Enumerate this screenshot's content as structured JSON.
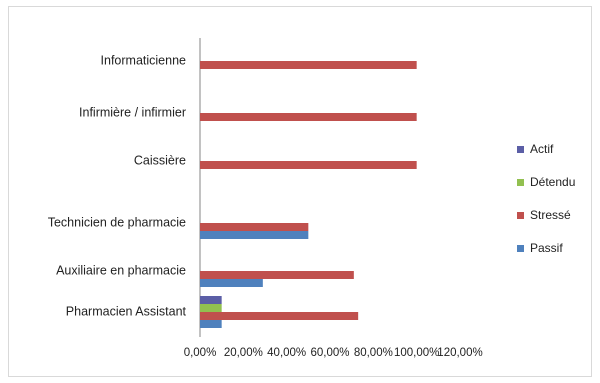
{
  "chart_data": {
    "type": "bar",
    "orientation": "horizontal",
    "categories": [
      "Informaticienne",
      "Infirmière / infirmier",
      "Caissière",
      "Technicien de pharmacie",
      "Auxiliaire en pharmacie",
      "Pharmacien Assistant"
    ],
    "series": [
      {
        "name": "Actif",
        "color": "#5b5ea6",
        "values": [
          0,
          0,
          0,
          0,
          0,
          10
        ]
      },
      {
        "name": "Détendu",
        "color": "#92c050",
        "values": [
          0,
          0,
          0,
          0,
          0,
          10
        ]
      },
      {
        "name": "Stressé",
        "color": "#c0504d",
        "values": [
          100,
          100,
          100,
          50,
          71,
          73
        ]
      },
      {
        "name": "Passif",
        "color": "#4f81bd",
        "values": [
          0,
          0,
          0,
          50,
          29,
          10
        ]
      }
    ],
    "xlim": [
      0,
      120
    ],
    "x_ticks": [
      "0,00%",
      "20,00%",
      "40,00%",
      "60,00%",
      "80,00%",
      "100,00%",
      "120,00%"
    ],
    "legend_position": "right",
    "grid": false
  }
}
